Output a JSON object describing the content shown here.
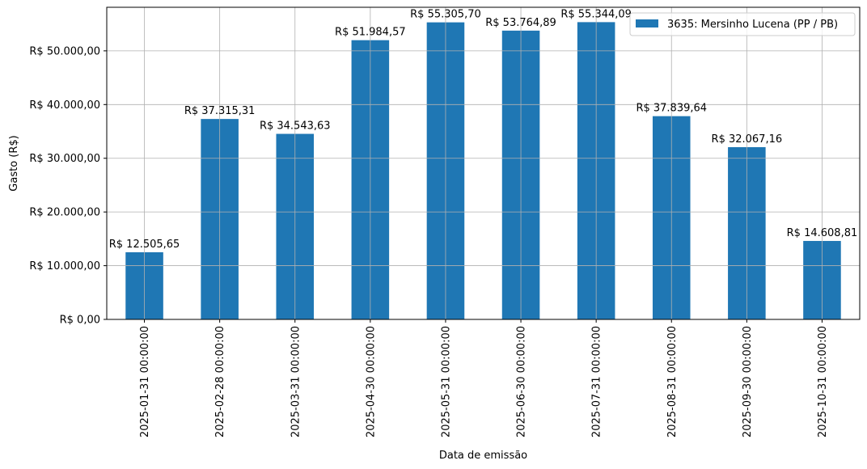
{
  "chart_data": {
    "type": "bar",
    "categories": [
      "2025-01-31 00:00:00",
      "2025-02-28 00:00:00",
      "2025-03-31 00:00:00",
      "2025-04-30 00:00:00",
      "2025-05-31 00:00:00",
      "2025-06-30 00:00:00",
      "2025-07-31 00:00:00",
      "2025-08-31 00:00:00",
      "2025-09-30 00:00:00",
      "2025-10-31 00:00:00"
    ],
    "series": [
      {
        "name": "3635: Mersinho Lucena (PP / PB)",
        "values": [
          12505.65,
          37315.31,
          34543.63,
          51984.57,
          55305.7,
          53764.89,
          55344.09,
          37839.64,
          32067.16,
          14608.81
        ],
        "data_labels": [
          "R$ 12.505,65",
          "R$ 37.315,31",
          "R$ 34.543,63",
          "R$ 51.984,57",
          "R$ 55.305,70",
          "R$ 53.764,89",
          "R$ 55.344,09",
          "R$ 37.839,64",
          "R$ 32.067,16",
          "R$ 14.608,81"
        ],
        "color": "#1f77b4"
      }
    ],
    "xlabel": "Data de emissão",
    "ylabel": "Gasto (R$)",
    "ylim": [
      0,
      58111
    ],
    "yticks": [
      0,
      10000,
      20000,
      30000,
      40000,
      50000
    ],
    "ytick_labels": [
      "R$ 0,00",
      "R$ 10.000,00",
      "R$ 20.000,00",
      "R$ 30.000,00",
      "R$ 40.000,00",
      "R$ 50.000,00"
    ],
    "grid": true,
    "legend_position": "top-right"
  }
}
